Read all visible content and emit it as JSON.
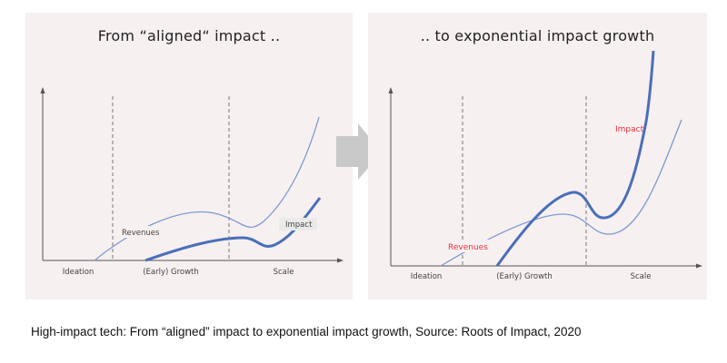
{
  "left_panel": {
    "title": "From “aligned“ impact ..",
    "stages": [
      "Ideation",
      "(Early) Growth",
      "Scale"
    ],
    "revenues_label": "Revenues",
    "impact_label": "Impact"
  },
  "right_panel": {
    "title": ".. to exponential impact growth",
    "stages": [
      "Ideation",
      "(Early) Growth",
      "Scale"
    ],
    "revenues_label": "Revenues",
    "impact_label": "Impact"
  },
  "caption": "High-impact tech: From “aligned” impact to exponential impact growth, Source: Roots of Impact, 2020",
  "colors": {
    "panel_bg": "#f7f0f0",
    "impact_line": "#4a6fb8",
    "revenue_line": "#7a9ad2",
    "highlight_text": "#e8323c",
    "arrow": "#c9c9c9"
  }
}
